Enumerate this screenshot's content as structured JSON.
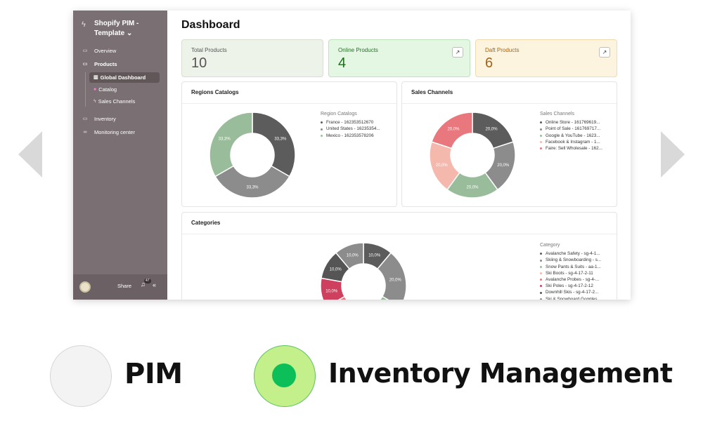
{
  "carousel": {
    "prev_icon": "chevron-left-icon",
    "next_icon": "chevron-right-icon"
  },
  "sidebar": {
    "workspace_title": "Shopify PIM - Template ⌄",
    "items": [
      {
        "label": "Overview",
        "icon": "folder-icon"
      },
      {
        "label": "Products",
        "icon": "folder-icon"
      },
      {
        "label": "Inventory",
        "icon": "folder-icon"
      },
      {
        "label": "Monitoring center",
        "icon": "infinity-icon"
      }
    ],
    "subitems": [
      {
        "label": "Global Dashboard",
        "icon": "chart-icon"
      },
      {
        "label": "Catalog",
        "icon": "catalog-icon"
      },
      {
        "label": "Sales Channels",
        "icon": "lightning-icon"
      }
    ],
    "footer": {
      "share_label": "Share",
      "notification_count": "47"
    }
  },
  "main": {
    "title": "Dashboard",
    "cards": [
      {
        "label": "Total Products",
        "value": "10"
      },
      {
        "label": "Online Products",
        "value": "4"
      },
      {
        "label": "Daft Products",
        "value": "6"
      }
    ]
  },
  "colors": {
    "sidebar": "#7a7074",
    "online_card": "#e3f7e3",
    "draft_card": "#fdf4e0",
    "radio_selected": "#0cbf58"
  },
  "chart_data": [
    {
      "type": "pie",
      "title": "Regions Catalogs",
      "legend_title": "Region Catalogs",
      "legend_position": "right",
      "categories": [
        "France - 162353512670",
        "United States - 16235354...",
        "Mexico - 162353578206"
      ],
      "values": [
        33.3,
        33.3,
        33.3
      ],
      "slice_labels": [
        "33,3%",
        "33,3%",
        "33,3%"
      ],
      "colors": [
        "#5c5c5c",
        "#8c8c8c",
        "#99bd9a"
      ]
    },
    {
      "type": "pie",
      "title": "Sales Channels",
      "legend_title": "Sales Channels",
      "legend_position": "right",
      "categories": [
        "Online Store - 161769619...",
        "Point of Sale - 161769717...",
        "Google & YouTube - 1623...",
        "Facebook & Instagram - 1...",
        "Faire: Sell Wholesale - 162..."
      ],
      "values": [
        20,
        20,
        20,
        20,
        20
      ],
      "slice_labels": [
        "20,0%",
        "20,0%",
        "20,0%",
        "20,0%",
        "20,0%"
      ],
      "colors": [
        "#5c5c5c",
        "#8c8c8c",
        "#99bd9a",
        "#f5b8ad",
        "#e8787d"
      ]
    },
    {
      "type": "pie",
      "title": "Categories",
      "legend_title": "Category",
      "legend_position": "right",
      "categories": [
        "Avalanche Safety - sg-4-1...",
        "Skiing & Snowboarding - s...",
        "Snow Pants & Suits - aa-1...",
        "Ski Boots - sg-4-17-2-11",
        "Avalanche Probes - sg-4-...",
        "Ski Poles - sg-4-17-2-12",
        "Downhill Skis - sg-4-17-2...",
        "Ski & Snowboard Goggles ..."
      ],
      "values": [
        10,
        20,
        10,
        10,
        10,
        10,
        10,
        10
      ],
      "slice_labels": [
        "10,0%",
        "20,0%",
        "",
        "",
        "",
        "10,0%",
        "10,0%",
        "10,0%"
      ],
      "colors": [
        "#5c5c5c",
        "#8c8c8c",
        "#99bd9a",
        "#f5b8ad",
        "#e8787d",
        "#cf3f5e",
        "#555555",
        "#8c8c8c"
      ]
    }
  ],
  "options": [
    {
      "label": "PIM",
      "selected": false
    },
    {
      "label": "Inventory Management",
      "selected": true
    }
  ]
}
